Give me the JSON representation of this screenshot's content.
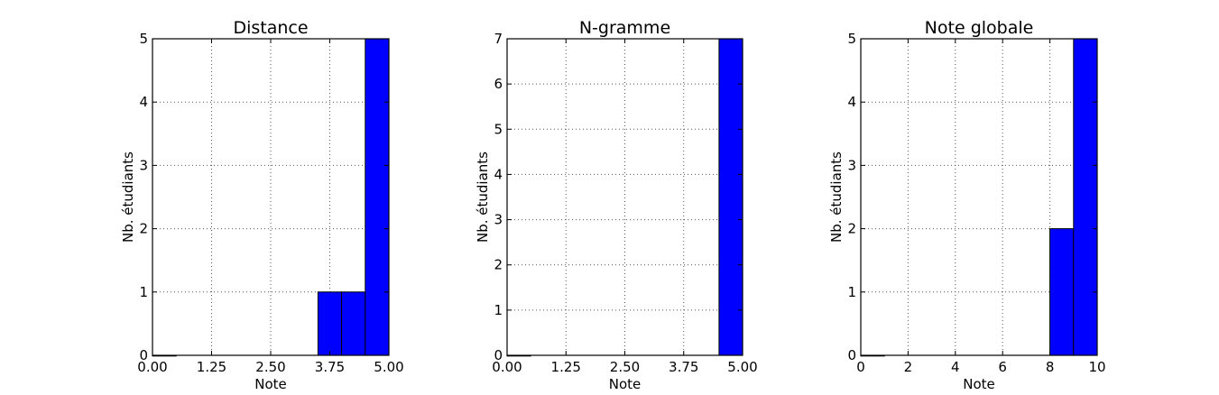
{
  "chart_data": [
    {
      "type": "bar",
      "title": "Distance",
      "xlabel": "Note",
      "ylabel": "Nb. étudiants",
      "xlim": [
        0,
        5
      ],
      "ylim": [
        0,
        5
      ],
      "xticks": [
        "0.00",
        "1.25",
        "2.50",
        "3.75",
        "5.00"
      ],
      "yticks": [
        "0",
        "1",
        "2",
        "3",
        "4",
        "5"
      ],
      "grid": true,
      "bar_color": "#0000ff",
      "bins": [
        {
          "x0": 0.0,
          "x1": 0.5,
          "value": 0
        },
        {
          "x0": 3.5,
          "x1": 4.0,
          "value": 1
        },
        {
          "x0": 4.0,
          "x1": 4.5,
          "value": 1
        },
        {
          "x0": 4.5,
          "x1": 5.0,
          "value": 5
        }
      ]
    },
    {
      "type": "bar",
      "title": "N-gramme",
      "xlabel": "Note",
      "ylabel": "Nb. étudiants",
      "xlim": [
        0,
        5
      ],
      "ylim": [
        0,
        7
      ],
      "xticks": [
        "0.00",
        "1.25",
        "2.50",
        "3.75",
        "5.00"
      ],
      "yticks": [
        "0",
        "1",
        "2",
        "3",
        "4",
        "5",
        "6",
        "7"
      ],
      "grid": true,
      "bar_color": "#0000ff",
      "bins": [
        {
          "x0": 0.0,
          "x1": 0.5,
          "value": 0
        },
        {
          "x0": 4.5,
          "x1": 5.0,
          "value": 7
        }
      ]
    },
    {
      "type": "bar",
      "title": "Note globale",
      "xlabel": "Note",
      "ylabel": "Nb. étudiants",
      "xlim": [
        0,
        10
      ],
      "ylim": [
        0,
        5
      ],
      "xticks": [
        "0",
        "2",
        "4",
        "6",
        "8",
        "10"
      ],
      "yticks": [
        "0",
        "1",
        "2",
        "3",
        "4",
        "5"
      ],
      "grid": true,
      "bar_color": "#0000ff",
      "bins": [
        {
          "x0": 0,
          "x1": 1,
          "value": 0
        },
        {
          "x0": 8,
          "x1": 9,
          "value": 2
        },
        {
          "x0": 9,
          "x1": 10,
          "value": 5
        }
      ]
    }
  ]
}
